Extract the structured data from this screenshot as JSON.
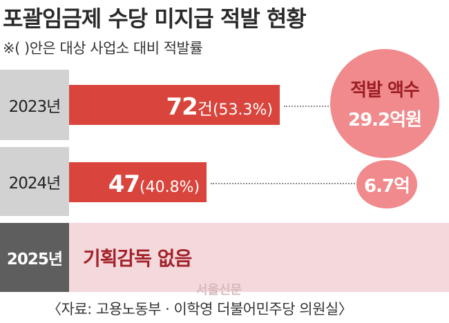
{
  "title": "포괄임금제 수당 미지급 적발 현황",
  "note": "※(  )안은 대상 사업소 대비 적발률",
  "colors": {
    "bar": "#d9453d",
    "row_bg_gray": "#d2d2d2",
    "year_bg_dark": "#5e5e5e",
    "row_bg_pink": "#f3d8dc",
    "circle": "#f08a8c"
  },
  "chart_data": {
    "type": "bar",
    "orientation": "horizontal",
    "title": "포괄임금제 수당 미지급 적발 현황",
    "xlabel": "",
    "ylabel": "",
    "xlim": [
      0,
      72
    ],
    "categories": [
      "2023년",
      "2024년",
      "2025년"
    ],
    "series": [
      {
        "name": "",
        "values": [
          72,
          47,
          null
        ]
      }
    ],
    "count_labels": [
      "72",
      "47",
      ""
    ],
    "count_units": [
      "건",
      "",
      ""
    ],
    "rate_labels": [
      "(53.3%)",
      "(40.8%)",
      ""
    ],
    "rates_percent": [
      53.3,
      40.8,
      null
    ],
    "amount_title": "적발 액수",
    "amount_labels": [
      "29.2억원",
      "6.7억",
      ""
    ],
    "amounts_100m_won": [
      29.2,
      6.7,
      null
    ],
    "no_data_label": "기획감독 없음",
    "grid": false,
    "legend": "none"
  },
  "watermark": "서울신문",
  "source": "〈자료: 고용노동부 · 이학영 더불어민주당 의원실〉"
}
